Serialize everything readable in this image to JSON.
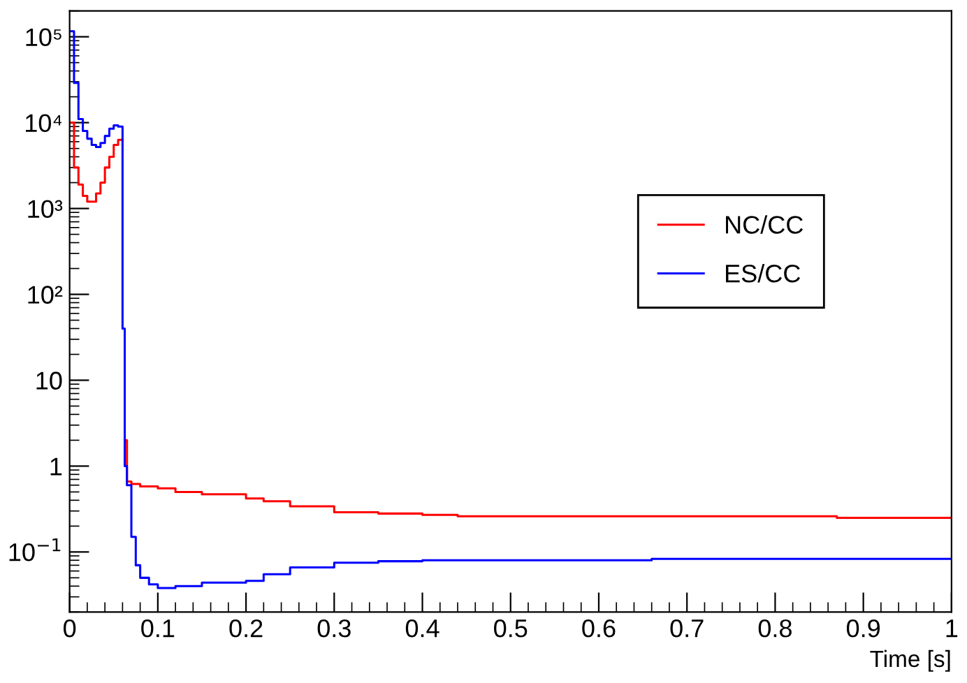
{
  "chart_data": {
    "type": "step",
    "xlabel": "Time [s]",
    "xlim": [
      0,
      1
    ],
    "xticks": [
      0,
      {
        "value": 0.1,
        "label": "0.1"
      },
      {
        "value": 0.2,
        "label": "0.2"
      },
      {
        "value": 0.3,
        "label": "0.3"
      },
      {
        "value": 0.4,
        "label": "0.4"
      },
      {
        "value": 0.5,
        "label": "0.5"
      },
      {
        "value": 0.6,
        "label": "0.6"
      },
      {
        "value": 0.7,
        "label": "0.7"
      },
      {
        "value": 0.8,
        "label": "0.8"
      },
      {
        "value": 0.9,
        "label": "0.9"
      },
      1
    ],
    "log": "y",
    "ylim": [
      0.02,
      200000
    ],
    "yticks": [
      {
        "value": 0.1,
        "label": "10$^{−1}$"
      },
      1,
      10,
      {
        "value": 100,
        "label": "10²"
      },
      {
        "value": 1000,
        "label": "10³"
      },
      {
        "value": 10000,
        "label": "10⁴"
      },
      {
        "value": 100000,
        "label": "10⁵"
      }
    ],
    "legend": "center right",
    "grid": false,
    "series": [
      {
        "name": "NC/CC",
        "color": "#ff0000",
        "x": [
          0,
          0.005,
          0.01,
          0.015,
          0.02,
          0.025,
          0.03,
          0.035,
          0.04,
          0.045,
          0.05,
          0.055,
          0.06,
          0.0625,
          0.065,
          0.07,
          0.08,
          0.1,
          0.12,
          0.15,
          0.2,
          0.22,
          0.25,
          0.3,
          0.35,
          0.4,
          0.44,
          0.6,
          0.87,
          1
        ],
        "values": [
          10000,
          3000,
          1900,
          1400,
          1200,
          1200,
          1500,
          2000,
          3000,
          4000,
          5500,
          6300,
          null,
          2,
          0.66,
          0.62,
          0.58,
          0.55,
          0.5,
          0.47,
          0.42,
          0.39,
          0.34,
          0.29,
          0.28,
          0.27,
          0.26,
          0.26,
          0.25,
          0.25
        ]
      },
      {
        "name": "ES/CC",
        "color": "#0000ff",
        "x": [
          0,
          0.005,
          0.01,
          0.015,
          0.02,
          0.025,
          0.03,
          0.035,
          0.04,
          0.045,
          0.05,
          0.055,
          0.06,
          0.0625,
          0.065,
          0.07,
          0.075,
          0.08,
          0.09,
          0.1,
          0.12,
          0.15,
          0.2,
          0.22,
          0.25,
          0.3,
          0.35,
          0.4,
          0.5,
          0.66,
          1
        ],
        "values": [
          116000,
          29000,
          11000,
          8000,
          6500,
          5500,
          5200,
          5800,
          7000,
          8500,
          9300,
          9000,
          40,
          1,
          0.6,
          0.15,
          0.07,
          0.05,
          0.042,
          0.038,
          0.04,
          0.044,
          0.046,
          0.055,
          0.066,
          0.075,
          0.078,
          0.08,
          0.08,
          0.083,
          0.083
        ]
      }
    ]
  }
}
